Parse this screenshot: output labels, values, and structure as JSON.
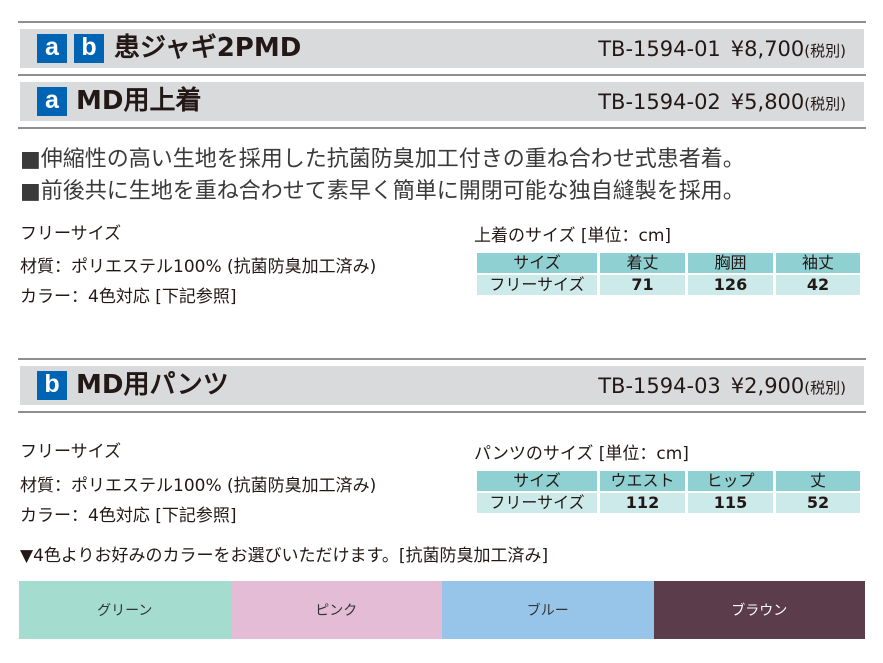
{
  "products": [
    {
      "badges": [
        "a",
        "b"
      ],
      "title": "患ジャギ2PMD",
      "code": "TB-1594-01",
      "price": "¥8,700",
      "tax": "(税別)"
    },
    {
      "badges": [
        "a"
      ],
      "title": "MD用上着",
      "code": "TB-1594-02",
      "price": "¥5,800",
      "tax": "(税別)"
    },
    {
      "badges": [
        "b"
      ],
      "title": "MD用パンツ",
      "code": "TB-1594-03",
      "price": "¥2,900",
      "tax": "(税別)"
    }
  ],
  "features": [
    "■伸縮性の高い生地を採用した抗菌防臭加工付きの重ね合わせ式患者着。",
    "■前後共に生地を重ね合わせて素早く簡単に開閉可能な独自縫製を採用。"
  ],
  "jacket_info": {
    "size": "フリーサイズ",
    "material": "材質：ポリエステル100% (抗菌防臭加工済み)",
    "colors": "カラー：4色対応 [下記参照]",
    "table_caption": "上着のサイズ [単位：cm]",
    "table_headers": [
      "サイズ",
      "着丈",
      "胸囲",
      "袖丈"
    ],
    "table_row": [
      "フリーサイズ",
      "71",
      "126",
      "42"
    ]
  },
  "pants_info": {
    "size": "フリーサイズ",
    "material": "材質：ポリエステル100% (抗菌防臭加工済み)",
    "colors": "カラー：4色対応 [下記参照]",
    "table_caption": "パンツのサイズ [単位：cm]",
    "table_headers": [
      "サイズ",
      "ウエスト",
      "ヒップ",
      "丈"
    ],
    "table_row": [
      "フリーサイズ",
      "112",
      "115",
      "52"
    ]
  },
  "color_note": "▼4色よりお好みのカラーをお選びいただけます。[抗菌防臭加工済み]",
  "swatches": [
    {
      "label": "グリーン",
      "color": "#a4dccf"
    },
    {
      "label": "ピンク",
      "color": "#e4bcd5"
    },
    {
      "label": "ブルー",
      "color": "#96c5e9"
    },
    {
      "label": "ブラウン",
      "color": "#5b3c4a"
    }
  ],
  "colors": {
    "badge": "#0064b4",
    "band": "#d9dadb",
    "table_header": "#8fd0d3",
    "table_row": "#cdeaeb"
  }
}
